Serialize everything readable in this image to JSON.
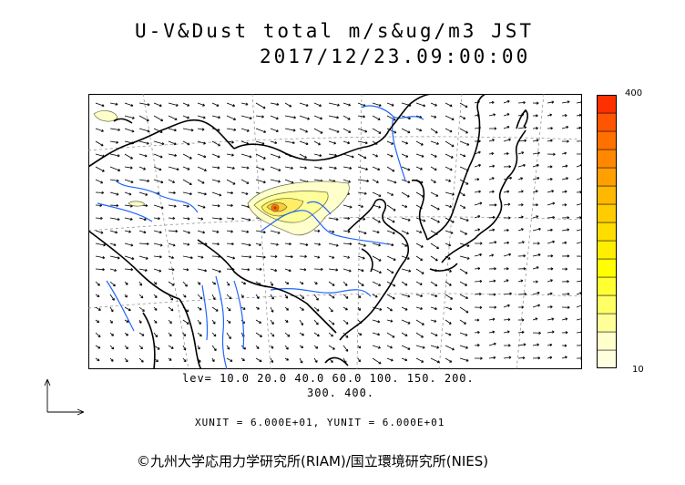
{
  "header": {
    "title": "U-V&Dust total m/s&ug/m3 JST",
    "datetime": "2017/12/23.09:00:00"
  },
  "colorbar": {
    "max_label": "400",
    "min_label": "10",
    "colors": [
      "#ffffe0",
      "#ffffcc",
      "#ffff99",
      "#ffff66",
      "#ffff33",
      "#ffff00",
      "#ffee00",
      "#ffdd00",
      "#ffcc00",
      "#ffb800",
      "#ffa000",
      "#ff8800",
      "#ff7000",
      "#ff5500",
      "#ff3000"
    ]
  },
  "legend": {
    "levels_line1": "lev= 10.0 20.0 40.0 60.0 100. 150. 200.",
    "levels_line2": "300. 400.",
    "units": "XUNIT = 6.000E+01, YUNIT = 6.000E+01"
  },
  "footer": {
    "copyright": "©九州大学応用力学研究所(RIAM)/国立環境研究所(NIES)"
  },
  "colors": {
    "coast": "#000000",
    "rivers": "#1e64ff",
    "grid": "#888888",
    "dust_core": "#e03000"
  },
  "icons": {
    "axes": "xy-axes-arrows-icon"
  }
}
